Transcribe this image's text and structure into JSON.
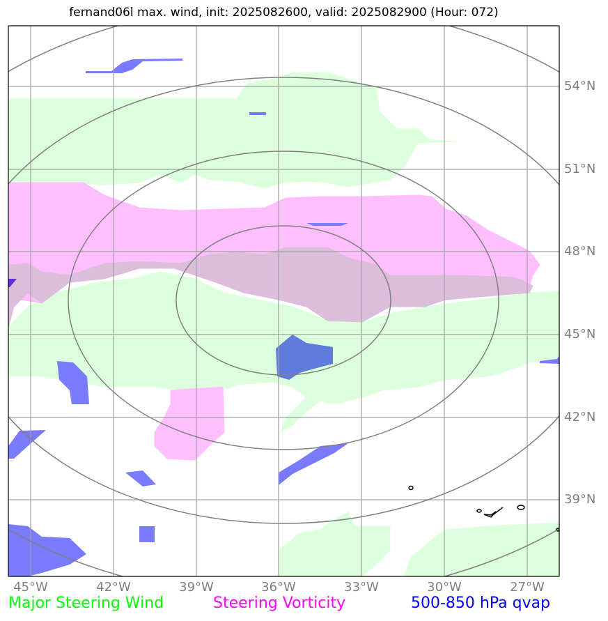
{
  "title": "fernand06l max. wind, init: 2025082600, valid: 2025082900 (Hour: 072)",
  "lon_labels": [
    "45°W",
    "42°W",
    "39°W",
    "36°W",
    "33°W",
    "30°W",
    "27°W"
  ],
  "lat_labels": [
    "54°N",
    "51°N",
    "48°N",
    "45°N",
    "42°N",
    "39°N"
  ],
  "legend": [
    {
      "label": "Major Steering Wind",
      "color": "#00ff00"
    },
    {
      "label": "Steering Vorticity",
      "color": "#ff00ff"
    },
    {
      "label": "500-850 hPa qvap",
      "color": "#0000ff"
    }
  ],
  "colors": {
    "steering_wind_fill": "#dcffdc",
    "vorticity_fill": "#ffbfff",
    "overlap_fill": "#dcbedc",
    "qvap_fill": "#7a7aff",
    "qvap_dark_fill": "#5f7bdc",
    "range_rings": "#808080",
    "gridlines": "#a0a0a0"
  }
}
